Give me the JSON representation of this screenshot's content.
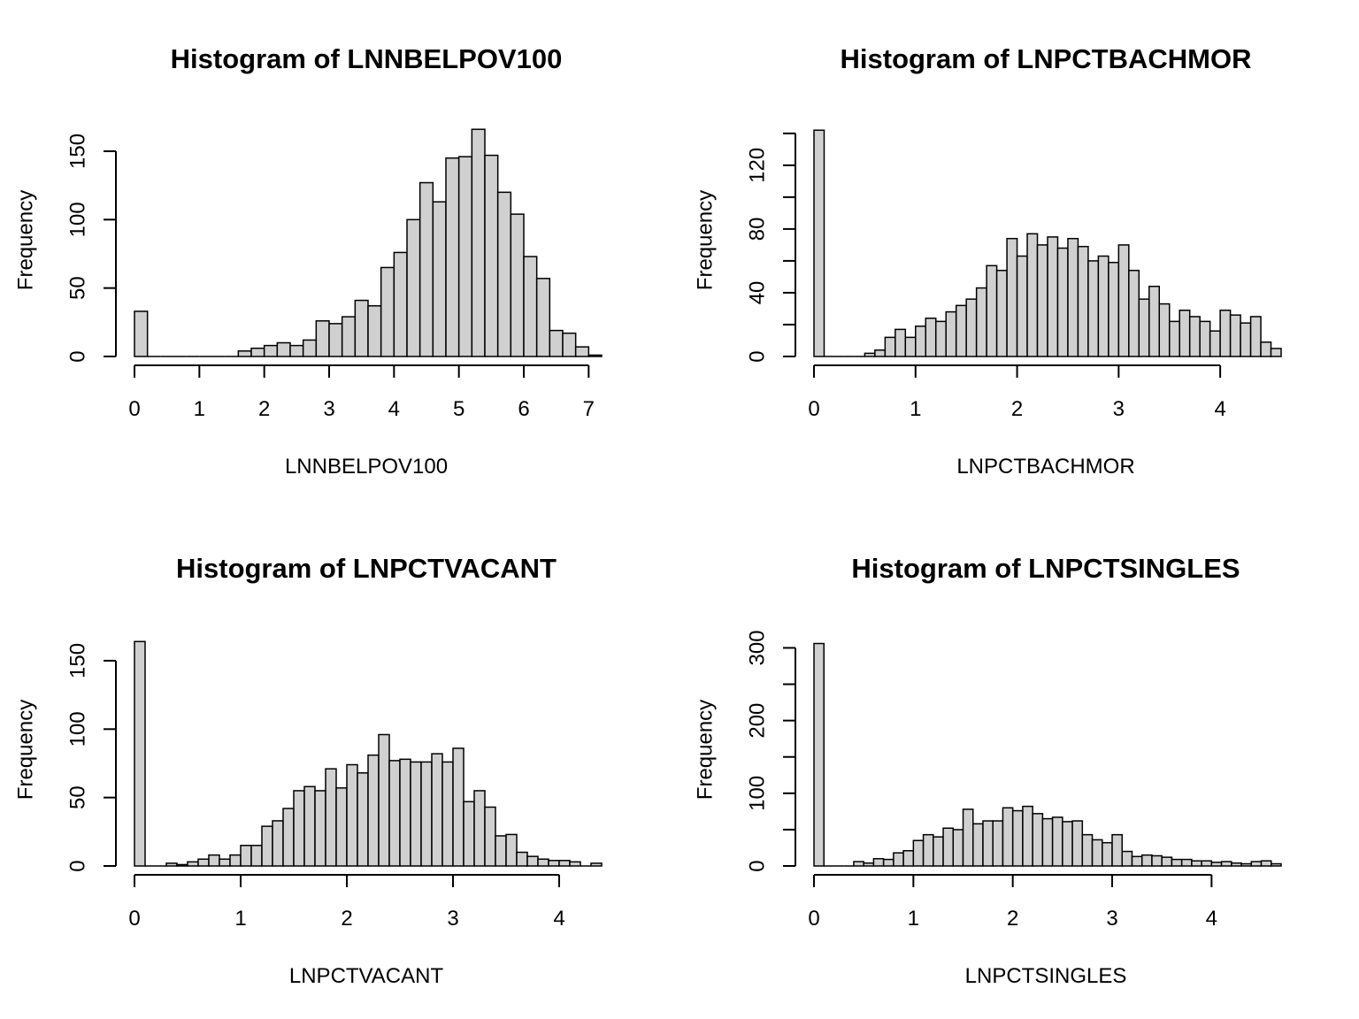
{
  "chart_data": [
    {
      "type": "bar",
      "title": "Histogram of LNNBELPOV100",
      "xlabel": "LNNBELPOV100",
      "ylabel": "Frequency",
      "xlim": [
        0,
        7.2
      ],
      "ylim": [
        0,
        170
      ],
      "x_ticks": [
        0,
        1,
        2,
        3,
        4,
        5,
        6,
        7
      ],
      "y_ticks": [
        0,
        50,
        100,
        150
      ],
      "y_minor_ticks": [],
      "bin_width": 0.2,
      "bin_start": 0,
      "values": [
        33,
        0,
        0,
        0,
        0,
        0,
        0,
        0,
        4,
        6,
        8,
        10,
        8,
        12,
        26,
        24,
        29,
        41,
        37,
        65,
        76,
        100,
        127,
        113,
        145,
        146,
        166,
        147,
        120,
        104,
        73,
        57,
        19,
        17,
        7,
        1
      ]
    },
    {
      "type": "bar",
      "title": "Histogram of LNPCTBACHMOR",
      "xlabel": "LNPCTBACHMOR",
      "ylabel": "Frequency",
      "xlim": [
        0,
        4.6
      ],
      "ylim": [
        0,
        146
      ],
      "x_ticks": [
        0,
        1,
        2,
        3,
        4
      ],
      "y_ticks": [
        0,
        40,
        80,
        120
      ],
      "y_minor_ticks": [
        20,
        60,
        100,
        140
      ],
      "bin_width": 0.1,
      "bin_start": 0,
      "values": [
        142,
        0,
        0,
        0,
        0,
        2,
        4,
        12,
        17,
        12,
        19,
        24,
        22,
        28,
        32,
        36,
        43,
        57,
        54,
        74,
        63,
        77,
        70,
        75,
        68,
        74,
        69,
        60,
        63,
        59,
        70,
        54,
        36,
        44,
        33,
        22,
        29,
        25,
        22,
        16,
        29,
        26,
        21,
        25,
        9,
        5
      ]
    },
    {
      "type": "bar",
      "title": "Histogram of LNPCTVACANT",
      "xlabel": "LNPCTVACANT",
      "ylabel": "Frequency",
      "xlim": [
        0,
        4.4
      ],
      "ylim": [
        0,
        170
      ],
      "x_ticks": [
        0,
        1,
        2,
        3,
        4
      ],
      "y_ticks": [
        0,
        50,
        100,
        150
      ],
      "y_minor_ticks": [],
      "bin_width": 0.1,
      "bin_start": 0,
      "values": [
        164,
        0,
        0,
        2,
        1,
        3,
        5,
        8,
        5,
        8,
        15,
        15,
        29,
        33,
        42,
        55,
        58,
        55,
        71,
        57,
        74,
        68,
        81,
        96,
        77,
        78,
        76,
        76,
        82,
        76,
        86,
        47,
        55,
        43,
        22,
        23,
        10,
        7,
        5,
        4,
        4,
        3,
        0,
        2
      ]
    },
    {
      "type": "bar",
      "title": "Histogram of LNPCTSINGLES",
      "xlabel": "LNPCTSINGLES",
      "ylabel": "Frequency",
      "xlim": [
        0,
        4.7
      ],
      "ylim": [
        0,
        320
      ],
      "x_ticks": [
        0,
        1,
        2,
        3,
        4
      ],
      "y_ticks": [
        0,
        100,
        200,
        300
      ],
      "y_minor_ticks": [
        50,
        150,
        250
      ],
      "bin_width": 0.1,
      "bin_start": 0,
      "values": [
        306,
        0,
        0,
        0,
        6,
        4,
        10,
        9,
        18,
        21,
        35,
        43,
        40,
        52,
        50,
        78,
        58,
        62,
        62,
        80,
        76,
        82,
        72,
        65,
        67,
        61,
        62,
        43,
        36,
        32,
        43,
        20,
        13,
        15,
        14,
        12,
        9,
        9,
        7,
        7,
        5,
        6,
        4,
        3,
        6,
        7,
        3
      ]
    }
  ]
}
